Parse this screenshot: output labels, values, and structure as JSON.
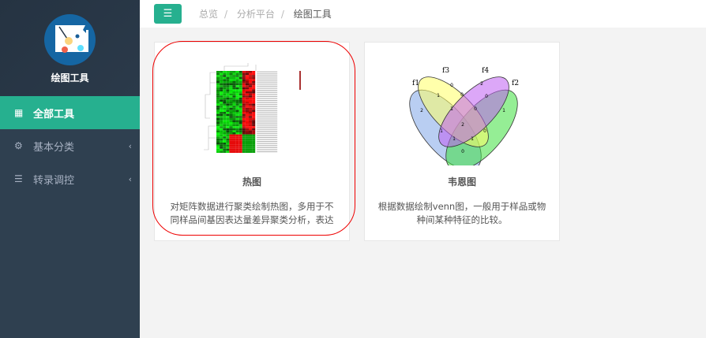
{
  "sidebar": {
    "brand": "绘图工具",
    "items": [
      {
        "label": "全部工具",
        "icon": "grid-icon",
        "active": true
      },
      {
        "label": "基本分类",
        "icon": "gears-icon"
      },
      {
        "label": "转录调控",
        "icon": "sliders-icon"
      }
    ]
  },
  "header": {
    "toggle_icon": "indent-icon",
    "breadcrumb": [
      "总览",
      "分析平台",
      "绘图工具"
    ]
  },
  "cards": [
    {
      "title": "热图",
      "desc": "对矩阵数据进行聚类绘制热图，多用于不同样品间基因表达量差异聚类分析，表达",
      "image": "heatmap"
    },
    {
      "title": "韦恩图",
      "desc": "根据数据绘制venn图，一般用于样品或物种间某种特征的比较。",
      "image": "venn",
      "venn": {
        "sets": [
          "f1",
          "f3",
          "f4",
          "f2"
        ],
        "colors": {
          "f1": "#7fa6e8",
          "f2": "#3ee03e",
          "f3": "#ffff66",
          "f4": "#c05ef2"
        },
        "counts": [
          "2",
          "0",
          "2",
          "1",
          "1",
          "0",
          "0",
          "1",
          "0",
          "2",
          "1",
          "0",
          "1",
          "1",
          "0"
        ]
      }
    }
  ],
  "colors": {
    "accent": "#26b08f",
    "sidebar": "#2f4050",
    "highlight": "#e00000"
  }
}
